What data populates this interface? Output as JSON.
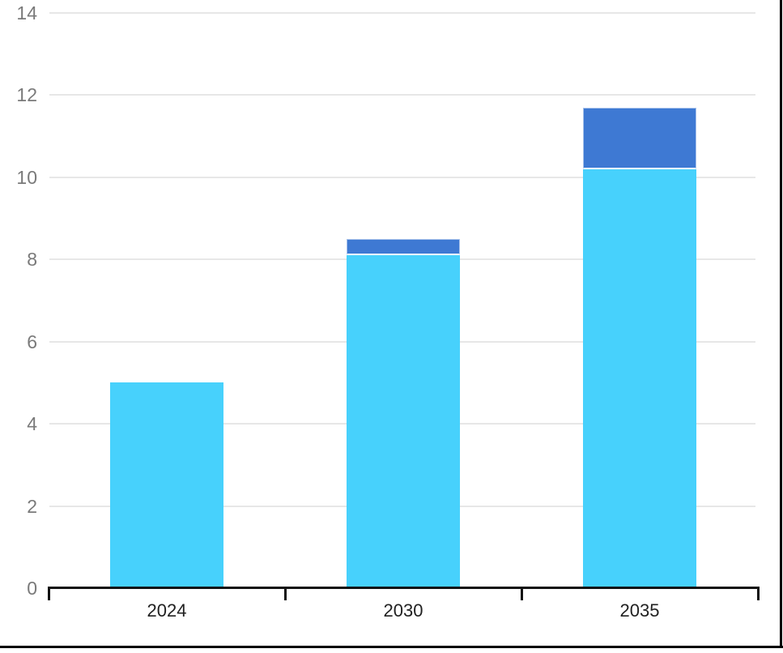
{
  "frame": {
    "border_color": "#000000",
    "background_color": "#ffffff"
  },
  "chart_data": {
    "type": "bar",
    "stacked": true,
    "title": "",
    "xlabel": "",
    "ylabel": "",
    "categories": [
      "2024",
      "2030",
      "2035"
    ],
    "series": [
      {
        "name": "light-blue-segment",
        "color": "#47D1FC",
        "values": [
          5.0,
          8.1,
          10.2
        ]
      },
      {
        "name": "dark-blue-segment",
        "color": "#3E79D3",
        "values": [
          0,
          0.4,
          1.5
        ]
      }
    ],
    "stack_totals": [
      5.0,
      8.5,
      11.7
    ],
    "ylim": [
      0,
      14
    ],
    "y_ticks": [
      "0",
      "2",
      "4",
      "6",
      "8",
      "10",
      "12",
      "14"
    ],
    "grid": true,
    "legend_position": "none",
    "styles": {
      "gridline_color": "#E7E7E7",
      "y_label_color": "#7A7A7A",
      "x_label_color": "#212121",
      "axis_color": "#111111",
      "segment_separator_color": "#FFFFFF"
    }
  }
}
